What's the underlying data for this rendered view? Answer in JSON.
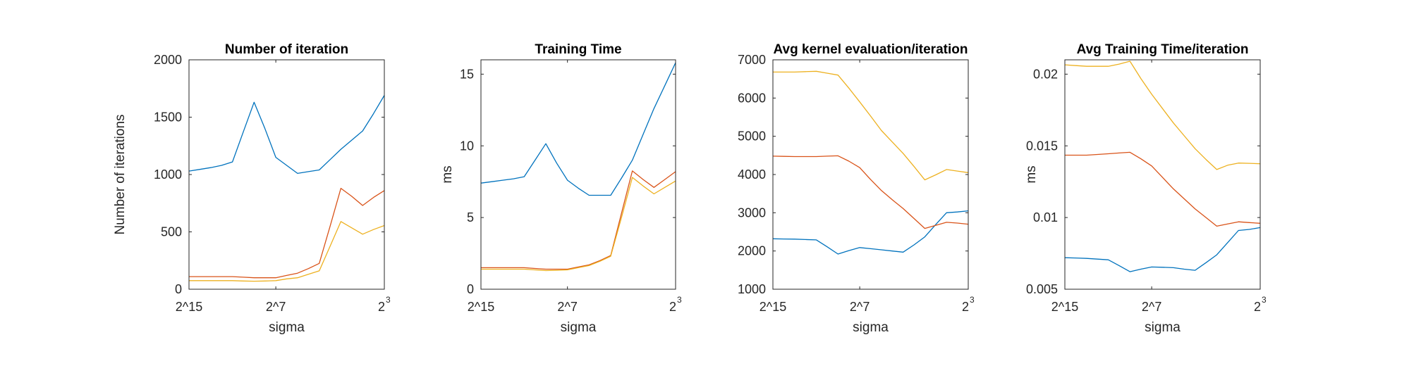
{
  "colors": {
    "series1": "#0072BD",
    "series2": "#D95319",
    "series3": "#EDB120",
    "axis": "#262626",
    "background": "#ffffff"
  },
  "x_tick_labels": [
    {
      "base": "2",
      "op": "^",
      "exp": "15"
    },
    {
      "base": "2",
      "op": "^",
      "exp": "7"
    },
    {
      "base": "2",
      "op": "",
      "exp": "3"
    }
  ],
  "chart_data": [
    {
      "type": "line",
      "title": "Number of iteration",
      "xlabel": "sigma",
      "ylabel": "Number of iterations",
      "x_exponents": [
        -15,
        -14,
        -13,
        -12,
        -11,
        -10,
        -9,
        -8,
        -7,
        -6,
        -5,
        -4,
        -3,
        -2,
        -1,
        0,
        1,
        2,
        3
      ],
      "ylim": [
        0,
        2000
      ],
      "yticks": [
        "0",
        "500",
        "1000",
        "1500",
        "2000"
      ],
      "grid": false,
      "series": [
        {
          "values": [
            1030,
            1045,
            1060,
            1080,
            1110,
            1370,
            1630,
            1400,
            1150,
            1080,
            1010,
            1025,
            1040,
            1130,
            1220,
            1300,
            1380,
            1530,
            1690
          ]
        },
        {
          "values": [
            110,
            110,
            110,
            110,
            110,
            105,
            100,
            100,
            100,
            120,
            140,
            180,
            225,
            550,
            880,
            810,
            730,
            800,
            860
          ]
        },
        {
          "values": [
            75,
            75,
            75,
            75,
            75,
            72,
            70,
            72,
            75,
            90,
            100,
            130,
            160,
            375,
            590,
            535,
            480,
            520,
            555
          ]
        }
      ]
    },
    {
      "type": "line",
      "title": "Training Time",
      "xlabel": "sigma",
      "ylabel": "ms",
      "x_exponents": [
        -15,
        -14,
        -13,
        -12,
        -11,
        -10,
        -9,
        -8,
        -7,
        -6,
        -5,
        -4,
        -3,
        -2,
        -1,
        0,
        1,
        2,
        3
      ],
      "ylim": [
        0,
        16
      ],
      "yticks": [
        "0",
        "5",
        "10",
        "15"
      ],
      "grid": false,
      "series": [
        {
          "values": [
            7.4,
            7.5,
            7.6,
            7.7,
            7.85,
            9.0,
            10.15,
            8.8,
            7.6,
            7.05,
            6.55,
            6.55,
            6.55,
            7.75,
            9.0,
            10.8,
            12.6,
            14.2,
            15.8
          ]
        },
        {
          "values": [
            1.5,
            1.5,
            1.5,
            1.5,
            1.5,
            1.45,
            1.4,
            1.4,
            1.4,
            1.55,
            1.7,
            2.0,
            2.35,
            5.3,
            8.25,
            7.65,
            7.1,
            7.65,
            8.2
          ]
        },
        {
          "values": [
            1.4,
            1.4,
            1.4,
            1.4,
            1.4,
            1.35,
            1.3,
            1.32,
            1.35,
            1.5,
            1.65,
            1.95,
            2.3,
            5.0,
            7.8,
            7.2,
            6.65,
            7.1,
            7.55
          ]
        }
      ]
    },
    {
      "type": "line",
      "title": "Avg kernel evaluation/iteration",
      "xlabel": "sigma",
      "ylabel": "",
      "x_exponents": [
        -15,
        -14,
        -13,
        -12,
        -11,
        -10,
        -9,
        -8,
        -7,
        -6,
        -5,
        -4,
        -3,
        -2,
        -1,
        0,
        1,
        2,
        3
      ],
      "ylim": [
        1000,
        7000
      ],
      "yticks": [
        "1000",
        "2000",
        "3000",
        "4000",
        "5000",
        "6000",
        "7000"
      ],
      "grid": false,
      "series": [
        {
          "values": [
            2320,
            2315,
            2310,
            2300,
            2290,
            2110,
            1920,
            2010,
            2090,
            2060,
            2030,
            2000,
            1970,
            2160,
            2370,
            2690,
            3000,
            3020,
            3050
          ]
        },
        {
          "values": [
            4480,
            4475,
            4470,
            4470,
            4470,
            4480,
            4490,
            4350,
            4180,
            3870,
            3580,
            3340,
            3110,
            2850,
            2590,
            2670,
            2750,
            2730,
            2700
          ]
        },
        {
          "values": [
            6680,
            6680,
            6680,
            6690,
            6700,
            6650,
            6600,
            6260,
            5900,
            5530,
            5150,
            4850,
            4550,
            4210,
            3860,
            3990,
            4130,
            4090,
            4050
          ]
        }
      ]
    },
    {
      "type": "line",
      "title": "Avg Training Time/iteration",
      "xlabel": "sigma",
      "ylabel": "ms",
      "x_exponents": [
        -15,
        -14,
        -13,
        -12,
        -11,
        -10,
        -9,
        -8,
        -7,
        -6,
        -5,
        -4,
        -3,
        -2,
        -1,
        0,
        1,
        2,
        3
      ],
      "ylim": [
        0.005,
        0.021
      ],
      "yticks": [
        "0.005",
        "0.01",
        "0.015",
        "0.02"
      ],
      "grid": false,
      "series": [
        {
          "values": [
            0.0072,
            0.00718,
            0.00715,
            0.0071,
            0.00705,
            0.00665,
            0.00622,
            0.0064,
            0.00655,
            0.00653,
            0.0065,
            0.0064,
            0.00632,
            0.00685,
            0.0074,
            0.00825,
            0.0091,
            0.00917,
            0.0093
          ]
        },
        {
          "values": [
            0.01435,
            0.01435,
            0.01435,
            0.0144,
            0.01445,
            0.0145,
            0.01455,
            0.0141,
            0.0136,
            0.0128,
            0.012,
            0.0113,
            0.0106,
            0.01,
            0.0094,
            0.00955,
            0.0097,
            0.00965,
            0.0096
          ]
        },
        {
          "values": [
            0.02065,
            0.0206,
            0.02055,
            0.02055,
            0.02055,
            0.0207,
            0.0209,
            0.0197,
            0.0186,
            0.0176,
            0.0166,
            0.0157,
            0.0148,
            0.01405,
            0.01335,
            0.01365,
            0.0138,
            0.01378,
            0.01375
          ]
        }
      ]
    }
  ]
}
